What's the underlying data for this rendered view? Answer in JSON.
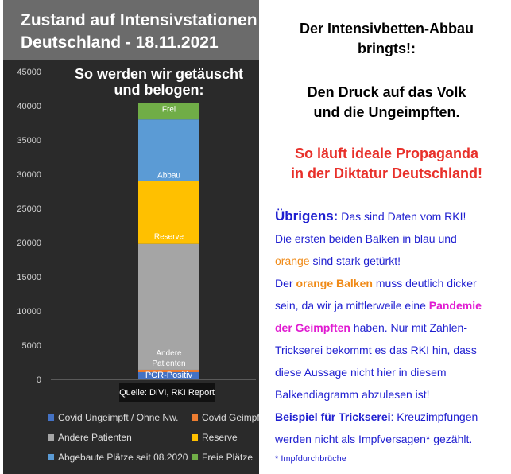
{
  "chart_data": {
    "type": "bar",
    "stacked": true,
    "title": "Zustand auf Intensivstationen Deutschland - 18.11.2021",
    "title_lines": [
      "Zustand auf Intensivstationen",
      "Deutschland - 18.11.2021"
    ],
    "subtitle": "So werden wir getäuscht und belogen:",
    "subtitle_lines": [
      "So werden wir getäuscht",
      "und belogen:"
    ],
    "ylim": [
      0,
      45000
    ],
    "yticks": [
      0,
      5000,
      10000,
      15000,
      20000,
      25000,
      30000,
      35000,
      40000,
      45000
    ],
    "ytick_labels": [
      "0",
      "5000",
      "10000",
      "15000",
      "20000",
      "25000",
      "30000",
      "35000",
      "40000",
      "45000"
    ],
    "grid": false,
    "legend_position": "bottom",
    "source": "Quelle: DIVI, RKI Report",
    "segments": [
      {
        "name": "PCR-Positiv",
        "label": "PCR-Positiv",
        "value": 1050,
        "color": "#4472c4",
        "label_color": "#ffffff"
      },
      {
        "name": "Covid Geimpft",
        "label": "",
        "value": 350,
        "color": "#ed7d31",
        "label_color": "#ffffff"
      },
      {
        "name": "Andere Patienten",
        "label": "Andere Patienten",
        "label_lines": [
          "Andere",
          "Patienten"
        ],
        "value": 18400,
        "color": "#a5a5a5",
        "label_color": "#ffffff"
      },
      {
        "name": "Reserve",
        "label": "Reserve",
        "value": 9200,
        "color": "#ffc000",
        "label_color": "#ffffff"
      },
      {
        "name": "Abbau",
        "label": "Abbau",
        "value": 9000,
        "color": "#5b9bd5",
        "label_color": "#ffffff"
      },
      {
        "name": "Frei",
        "label": "Frei",
        "value": 2400,
        "color": "#70ad47",
        "label_color": "#ffffff"
      }
    ],
    "legend": [
      {
        "label": "Covid Ungeimpft / Ohne Nw.",
        "color": "#4472c4"
      },
      {
        "label": "Covid Geimpft",
        "color": "#ed7d31"
      },
      {
        "label": "Andere Patienten",
        "color": "#a5a5a5"
      },
      {
        "label": "Reserve",
        "color": "#ffc000"
      },
      {
        "label": "Abgebaute Plätze seit 08.2020",
        "color": "#5b9bd5"
      },
      {
        "label": "Freie Plätze",
        "color": "#70ad47"
      }
    ]
  },
  "text": {
    "headline_1": "Der Intensivbetten-Abbau",
    "headline_2": "bringts!:",
    "sub_1": "Den Druck auf das Volk",
    "sub_2": "und die Ungeimpften.",
    "red_1": "So läuft ideale Propaganda",
    "red_2": "in der Diktatur Deutschland!",
    "p_l1_bold": "Übrigens:",
    "p_l1_rest": " Das sind Daten vom RKI!",
    "p_l2": "Die ersten beiden Balken in blau und",
    "p_l3_orange": "orange",
    "p_l3_rest": " sind stark getürkt!",
    "p_l4_pre": "Der ",
    "p_l4_orange": "orange Balken",
    "p_l4_rest": " muss deutlich dicker",
    "p_l5_pre": "sein, da wir ja mittlerweile eine ",
    "p_l5_pink": "Pandemie",
    "p_l6_pink": "der Geimpften",
    "p_l6_rest": " haben. Nur mit Zahlen-",
    "p_l7": "Trickserei bekommt es das RKI hin, dass",
    "p_l8": "diese Aussage nicht hier in diesem",
    "p_l9": "Balkendiagramm abzulesen ist!",
    "p_l10_bold": "Beispiel für Trickserei",
    "p_l10_rest": ": Kreuzimpfungen",
    "p_l11": "werden nicht als Impfversagen* gezählt.",
    "footnote": "* Impfdurchbrüche"
  },
  "colors": {
    "headline": "#000000",
    "red": "#e8302a",
    "blue_text": "#1f1fd0",
    "orange_text": "#f08a16",
    "pink_text": "#e01bd1",
    "panel_bg": "#2a2a2a",
    "header_bg": "#6b6b6b"
  }
}
